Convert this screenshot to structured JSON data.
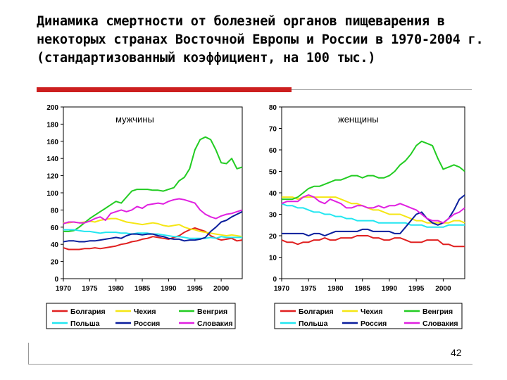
{
  "title": "Динамика смертности от болезней органов пищеварения в некоторых странах Восточной Европы и России в 1970-2004 г. (стандартизованный коэффициент, на 100 тыс.)",
  "page_number": "42",
  "colors": {
    "accent_bar": "#cc1f1f",
    "Болгария": "#e02020",
    "Чехия": "#f5e614",
    "Венгрия": "#22cc22",
    "Польша": "#22e6f0",
    "Россия": "#0a1e9c",
    "Словакия": "#e020e0"
  },
  "chart_data": [
    {
      "type": "line",
      "panel_label": "мужчины",
      "xlim": [
        1970,
        2004
      ],
      "ylim": [
        0,
        200
      ],
      "xticks": [
        "1970",
        "1975",
        "1980",
        "1985",
        "1990",
        "1995",
        "2000"
      ],
      "yticks": [
        "0",
        "20",
        "40",
        "60",
        "80",
        "100",
        "120",
        "140",
        "160",
        "180",
        "200"
      ],
      "legend": [
        "Болгария",
        "Чехия",
        "Венгрия",
        "Польша",
        "Россия",
        "Словакия"
      ],
      "x": [
        1970,
        1971,
        1972,
        1973,
        1974,
        1975,
        1976,
        1977,
        1978,
        1979,
        1980,
        1981,
        1982,
        1983,
        1984,
        1985,
        1986,
        1987,
        1988,
        1989,
        1990,
        1991,
        1992,
        1993,
        1994,
        1995,
        1996,
        1997,
        1998,
        1999,
        2000,
        2001,
        2002,
        2003,
        2004
      ],
      "series": [
        {
          "name": "Болгария",
          "values": [
            36,
            34,
            34,
            34,
            35,
            35,
            36,
            35,
            36,
            37,
            38,
            40,
            41,
            43,
            44,
            46,
            47,
            49,
            48,
            47,
            46,
            48,
            50,
            54,
            57,
            59,
            57,
            55,
            50,
            47,
            45,
            46,
            47,
            44,
            45
          ]
        },
        {
          "name": "Чехия",
          "values": [
            65,
            65,
            66,
            65,
            66,
            67,
            66,
            68,
            69,
            70,
            70,
            68,
            66,
            65,
            64,
            63,
            64,
            65,
            64,
            62,
            61,
            62,
            63,
            60,
            58,
            57,
            55,
            54,
            53,
            52,
            51,
            50,
            51,
            50,
            49
          ]
        },
        {
          "name": "Венгрия",
          "values": [
            55,
            55,
            56,
            60,
            65,
            70,
            74,
            78,
            82,
            86,
            90,
            88,
            95,
            102,
            104,
            104,
            104,
            103,
            103,
            102,
            104,
            106,
            114,
            118,
            128,
            150,
            162,
            165,
            162,
            150,
            135,
            134,
            140,
            128,
            130
          ]
        },
        {
          "name": "Польша",
          "values": [
            57,
            57,
            57,
            56,
            55,
            55,
            54,
            53,
            54,
            54,
            54,
            53,
            53,
            52,
            53,
            53,
            53,
            52,
            52,
            51,
            50,
            49,
            49,
            48,
            47,
            47,
            47,
            47,
            48,
            47,
            49,
            48,
            48,
            48,
            48
          ]
        },
        {
          "name": "Россия",
          "values": [
            43,
            44,
            44,
            43,
            43,
            44,
            44,
            45,
            46,
            47,
            48,
            47,
            50,
            52,
            52,
            51,
            52,
            52,
            50,
            49,
            47,
            46,
            46,
            44,
            45,
            45,
            46,
            48,
            55,
            60,
            66,
            68,
            72,
            75,
            78
          ]
        },
        {
          "name": "Словакия",
          "values": [
            64,
            66,
            66,
            65,
            65,
            67,
            70,
            72,
            68,
            76,
            78,
            80,
            78,
            80,
            84,
            82,
            86,
            87,
            88,
            87,
            90,
            92,
            93,
            92,
            90,
            88,
            80,
            75,
            72,
            70,
            73,
            75,
            76,
            78,
            80
          ]
        }
      ]
    },
    {
      "type": "line",
      "panel_label": "женщины",
      "xlim": [
        1970,
        2004
      ],
      "ylim": [
        0,
        80
      ],
      "xticks": [
        "1970",
        "1975",
        "1980",
        "1985",
        "1990",
        "1995",
        "2000"
      ],
      "yticks": [
        "0",
        "10",
        "20",
        "30",
        "40",
        "50",
        "60",
        "70",
        "80"
      ],
      "legend": [
        "Болгария",
        "Чехия",
        "Венгрия",
        "Польша",
        "Россия",
        "Словакия"
      ],
      "x": [
        1970,
        1971,
        1972,
        1973,
        1974,
        1975,
        1976,
        1977,
        1978,
        1979,
        1980,
        1981,
        1982,
        1983,
        1984,
        1985,
        1986,
        1987,
        1988,
        1989,
        1990,
        1991,
        1992,
        1993,
        1994,
        1995,
        1996,
        1997,
        1998,
        1999,
        2000,
        2001,
        2002,
        2003,
        2004
      ],
      "series": [
        {
          "name": "Болгария",
          "values": [
            18,
            17,
            17,
            16,
            17,
            17,
            18,
            18,
            19,
            18,
            18,
            19,
            19,
            19,
            20,
            20,
            20,
            19,
            19,
            18,
            18,
            19,
            19,
            18,
            17,
            17,
            17,
            18,
            18,
            18,
            16,
            16,
            15,
            15,
            15
          ]
        },
        {
          "name": "Чехия",
          "values": [
            38,
            38,
            38,
            37,
            38,
            38,
            38,
            38,
            38,
            38,
            38,
            37,
            36,
            35,
            35,
            34,
            33,
            32,
            32,
            31,
            30,
            30,
            30,
            29,
            28,
            27,
            27,
            26,
            26,
            26,
            26,
            26,
            27,
            27,
            26
          ]
        },
        {
          "name": "Венгрия",
          "values": [
            37,
            37,
            37,
            38,
            40,
            42,
            43,
            43,
            44,
            45,
            46,
            46,
            47,
            48,
            48,
            47,
            48,
            48,
            47,
            47,
            48,
            50,
            53,
            55,
            58,
            62,
            64,
            63,
            62,
            56,
            51,
            52,
            53,
            52,
            50
          ]
        },
        {
          "name": "Польша",
          "values": [
            35,
            34,
            34,
            33,
            33,
            32,
            31,
            31,
            30,
            30,
            29,
            29,
            28,
            28,
            27,
            27,
            27,
            27,
            26,
            26,
            26,
            26,
            26,
            26,
            25,
            25,
            25,
            24,
            24,
            24,
            24,
            25,
            25,
            25,
            25
          ]
        },
        {
          "name": "Россия",
          "values": [
            21,
            21,
            21,
            21,
            21,
            20,
            21,
            21,
            20,
            21,
            22,
            22,
            22,
            22,
            22,
            23,
            23,
            22,
            22,
            22,
            22,
            21,
            21,
            24,
            27,
            30,
            31,
            28,
            26,
            25,
            26,
            28,
            32,
            37,
            39
          ]
        },
        {
          "name": "Словакия",
          "values": [
            35,
            36,
            36,
            36,
            38,
            39,
            38,
            36,
            35,
            37,
            36,
            35,
            33,
            33,
            34,
            34,
            33,
            33,
            34,
            33,
            34,
            34,
            35,
            34,
            33,
            32,
            30,
            28,
            27,
            27,
            26,
            28,
            30,
            31,
            33
          ]
        }
      ]
    }
  ]
}
